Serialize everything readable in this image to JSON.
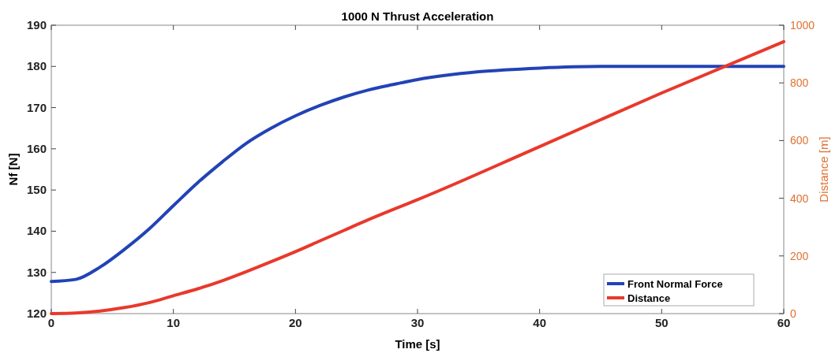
{
  "chart_data": {
    "type": "line",
    "title": "1000 N Thrust Acceleration",
    "xlabel": "Time [s]",
    "ylabel": "Nf [N]",
    "y2label": "Distance [m]",
    "xlim": [
      0,
      60
    ],
    "xticks": [
      0,
      10,
      20,
      30,
      40,
      50,
      60
    ],
    "ylim": [
      120,
      190
    ],
    "yticks": [
      120,
      130,
      140,
      150,
      160,
      170,
      180,
      190
    ],
    "y2lim": [
      0,
      1000
    ],
    "y2ticks": [
      0,
      200,
      400,
      600,
      800,
      1000
    ],
    "legend": "bottom right",
    "grid": false,
    "series": [
      {
        "name": "Front Normal Force",
        "color": "#2243b6",
        "x": [
          0,
          2,
          4,
          6,
          8,
          10,
          12,
          14,
          16,
          18,
          20,
          22,
          24,
          26,
          28,
          30,
          35,
          40,
          45,
          50,
          55,
          60
        ],
        "values": [
          127.8,
          128.3,
          131.3,
          135.6,
          140.5,
          146.2,
          151.8,
          156.8,
          161.4,
          165,
          168,
          170.5,
          172.6,
          174.3,
          175.6,
          176.8,
          178.7,
          179.6,
          180,
          180,
          180,
          180
        ]
      },
      {
        "name": "Distance",
        "color": "#e8392c",
        "axis": "y2",
        "x": [
          0,
          2,
          4,
          6,
          8,
          10,
          12,
          14,
          16,
          18,
          20,
          22,
          24,
          26,
          28,
          30,
          40,
          50,
          60
        ],
        "values": [
          0,
          2,
          9,
          21,
          38,
          62,
          86,
          114,
          146,
          180,
          215,
          252,
          289,
          326,
          361,
          395,
          579,
          765,
          943
        ]
      }
    ]
  }
}
